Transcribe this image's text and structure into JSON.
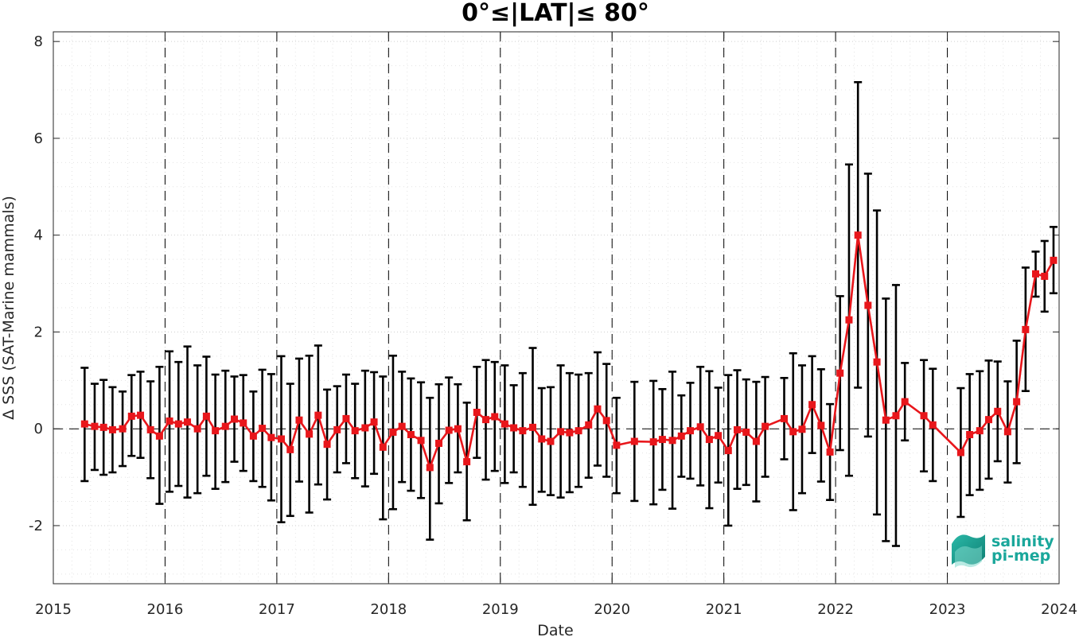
{
  "chart_data": {
    "type": "line",
    "title": "0°≤|LAT|≤ 80°",
    "xlabel": "Date",
    "ylabel": "Δ SSS (SAT-Marine mammals)",
    "xlim": [
      2015,
      2024
    ],
    "ylim": [
      -3.2,
      8.2
    ],
    "x_ticks": [
      2015,
      2016,
      2017,
      2018,
      2019,
      2020,
      2021,
      2022,
      2023,
      2024
    ],
    "y_ticks": [
      -2,
      0,
      2,
      4,
      6,
      8
    ],
    "grid": "dotted major and minor",
    "year_dividers": "dashed vertical lines at each year",
    "zero_line": "dashed horizontal line at 0",
    "series": [
      {
        "color": "#e8161b",
        "marker": "square",
        "error_bar_color": "#000000",
        "points": [
          {
            "x": 2015.28,
            "y": 0.1,
            "lo": -1.08,
            "hi": 1.26
          },
          {
            "x": 2015.37,
            "y": 0.05,
            "lo": -0.85,
            "hi": 0.93
          },
          {
            "x": 2015.45,
            "y": 0.03,
            "lo": -0.95,
            "hi": 1.01
          },
          {
            "x": 2015.53,
            "y": -0.02,
            "lo": -0.9,
            "hi": 0.86
          },
          {
            "x": 2015.62,
            "y": 0.0,
            "lo": -0.77,
            "hi": 0.77
          },
          {
            "x": 2015.7,
            "y": 0.26,
            "lo": -0.56,
            "hi": 1.11
          },
          {
            "x": 2015.78,
            "y": 0.28,
            "lo": -0.6,
            "hi": 1.18
          },
          {
            "x": 2015.87,
            "y": -0.02,
            "lo": -1.02,
            "hi": 0.98
          },
          {
            "x": 2015.95,
            "y": -0.15,
            "lo": -1.55,
            "hi": 1.28
          },
          {
            "x": 2016.04,
            "y": 0.16,
            "lo": -1.3,
            "hi": 1.6
          },
          {
            "x": 2016.12,
            "y": 0.1,
            "lo": -1.18,
            "hi": 1.38
          },
          {
            "x": 2016.2,
            "y": 0.14,
            "lo": -1.42,
            "hi": 1.7
          },
          {
            "x": 2016.29,
            "y": 0.0,
            "lo": -1.33,
            "hi": 1.31
          },
          {
            "x": 2016.37,
            "y": 0.26,
            "lo": -0.97,
            "hi": 1.49
          },
          {
            "x": 2016.45,
            "y": -0.04,
            "lo": -1.24,
            "hi": 1.12
          },
          {
            "x": 2016.54,
            "y": 0.05,
            "lo": -1.1,
            "hi": 1.2
          },
          {
            "x": 2016.62,
            "y": 0.2,
            "lo": -0.68,
            "hi": 1.08
          },
          {
            "x": 2016.7,
            "y": 0.12,
            "lo": -0.87,
            "hi": 1.11
          },
          {
            "x": 2016.79,
            "y": -0.15,
            "lo": -1.08,
            "hi": 0.77
          },
          {
            "x": 2016.87,
            "y": 0.01,
            "lo": -1.2,
            "hi": 1.22
          },
          {
            "x": 2016.95,
            "y": -0.18,
            "lo": -1.48,
            "hi": 1.13
          },
          {
            "x": 2017.04,
            "y": -0.21,
            "lo": -1.93,
            "hi": 1.5
          },
          {
            "x": 2017.12,
            "y": -0.43,
            "lo": -1.8,
            "hi": 0.93
          },
          {
            "x": 2017.2,
            "y": 0.18,
            "lo": -1.09,
            "hi": 1.45
          },
          {
            "x": 2017.29,
            "y": -0.11,
            "lo": -1.73,
            "hi": 1.51
          },
          {
            "x": 2017.37,
            "y": 0.28,
            "lo": -1.15,
            "hi": 1.72
          },
          {
            "x": 2017.45,
            "y": -0.32,
            "lo": -1.46,
            "hi": 0.81
          },
          {
            "x": 2017.54,
            "y": -0.02,
            "lo": -0.9,
            "hi": 0.88
          },
          {
            "x": 2017.62,
            "y": 0.21,
            "lo": -0.71,
            "hi": 1.12
          },
          {
            "x": 2017.7,
            "y": -0.04,
            "lo": -1.02,
            "hi": 0.93
          },
          {
            "x": 2017.79,
            "y": 0.02,
            "lo": -1.19,
            "hi": 1.2
          },
          {
            "x": 2017.87,
            "y": 0.14,
            "lo": -0.93,
            "hi": 1.17
          },
          {
            "x": 2017.95,
            "y": -0.38,
            "lo": -1.87,
            "hi": 1.08
          },
          {
            "x": 2018.04,
            "y": -0.07,
            "lo": -1.66,
            "hi": 1.51
          },
          {
            "x": 2018.12,
            "y": 0.05,
            "lo": -1.1,
            "hi": 1.18
          },
          {
            "x": 2018.2,
            "y": -0.12,
            "lo": -1.28,
            "hi": 1.04
          },
          {
            "x": 2018.29,
            "y": -0.24,
            "lo": -1.43,
            "hi": 0.96
          },
          {
            "x": 2018.37,
            "y": -0.8,
            "lo": -2.29,
            "hi": 0.64
          },
          {
            "x": 2018.45,
            "y": -0.3,
            "lo": -1.54,
            "hi": 0.92
          },
          {
            "x": 2018.54,
            "y": -0.03,
            "lo": -1.12,
            "hi": 1.06
          },
          {
            "x": 2018.62,
            "y": 0.0,
            "lo": -0.9,
            "hi": 0.92
          },
          {
            "x": 2018.7,
            "y": -0.68,
            "lo": -1.89,
            "hi": 0.54
          },
          {
            "x": 2018.79,
            "y": 0.34,
            "lo": -0.6,
            "hi": 1.28
          },
          {
            "x": 2018.87,
            "y": 0.19,
            "lo": -1.05,
            "hi": 1.42
          },
          {
            "x": 2018.95,
            "y": 0.25,
            "lo": -0.87,
            "hi": 1.38
          },
          {
            "x": 2019.04,
            "y": 0.1,
            "lo": -1.12,
            "hi": 1.31
          },
          {
            "x": 2019.12,
            "y": 0.02,
            "lo": -0.9,
            "hi": 0.9
          },
          {
            "x": 2019.2,
            "y": -0.04,
            "lo": -1.2,
            "hi": 1.15
          },
          {
            "x": 2019.29,
            "y": 0.03,
            "lo": -1.57,
            "hi": 1.67
          },
          {
            "x": 2019.37,
            "y": -0.21,
            "lo": -1.3,
            "hi": 0.84
          },
          {
            "x": 2019.45,
            "y": -0.26,
            "lo": -1.37,
            "hi": 0.86
          },
          {
            "x": 2019.54,
            "y": -0.06,
            "lo": -1.42,
            "hi": 1.31
          },
          {
            "x": 2019.62,
            "y": -0.08,
            "lo": -1.31,
            "hi": 1.15
          },
          {
            "x": 2019.7,
            "y": -0.04,
            "lo": -1.2,
            "hi": 1.12
          },
          {
            "x": 2019.79,
            "y": 0.08,
            "lo": -1.01,
            "hi": 1.15
          },
          {
            "x": 2019.87,
            "y": 0.41,
            "lo": -0.76,
            "hi": 1.58
          },
          {
            "x": 2019.95,
            "y": 0.17,
            "lo": -0.99,
            "hi": 1.34
          },
          {
            "x": 2020.04,
            "y": -0.34,
            "lo": -1.33,
            "hi": 0.64
          },
          {
            "x": 2020.2,
            "y": -0.26,
            "lo": -1.49,
            "hi": 0.97
          },
          {
            "x": 2020.37,
            "y": -0.27,
            "lo": -1.56,
            "hi": 0.99
          },
          {
            "x": 2020.45,
            "y": -0.22,
            "lo": -1.26,
            "hi": 0.82
          },
          {
            "x": 2020.54,
            "y": -0.24,
            "lo": -1.65,
            "hi": 1.18
          },
          {
            "x": 2020.62,
            "y": -0.15,
            "lo": -0.99,
            "hi": 0.69
          },
          {
            "x": 2020.7,
            "y": -0.04,
            "lo": -1.03,
            "hi": 0.95
          },
          {
            "x": 2020.79,
            "y": 0.04,
            "lo": -1.17,
            "hi": 1.28
          },
          {
            "x": 2020.87,
            "y": -0.22,
            "lo": -1.64,
            "hi": 1.19
          },
          {
            "x": 2020.95,
            "y": -0.14,
            "lo": -1.11,
            "hi": 0.85
          },
          {
            "x": 2021.04,
            "y": -0.45,
            "lo": -2.0,
            "hi": 1.11
          },
          {
            "x": 2021.12,
            "y": -0.02,
            "lo": -1.24,
            "hi": 1.21
          },
          {
            "x": 2021.2,
            "y": -0.07,
            "lo": -1.16,
            "hi": 1.02
          },
          {
            "x": 2021.29,
            "y": -0.26,
            "lo": -1.5,
            "hi": 0.97
          },
          {
            "x": 2021.37,
            "y": 0.05,
            "lo": -0.99,
            "hi": 1.07
          },
          {
            "x": 2021.54,
            "y": 0.21,
            "lo": -0.63,
            "hi": 1.05
          },
          {
            "x": 2021.62,
            "y": -0.06,
            "lo": -1.68,
            "hi": 1.56
          },
          {
            "x": 2021.7,
            "y": -0.01,
            "lo": -1.33,
            "hi": 1.31
          },
          {
            "x": 2021.79,
            "y": 0.5,
            "lo": -0.5,
            "hi": 1.5
          },
          {
            "x": 2021.87,
            "y": 0.07,
            "lo": -1.09,
            "hi": 1.23
          },
          {
            "x": 2021.95,
            "y": -0.48,
            "lo": -1.47,
            "hi": 0.51
          },
          {
            "x": 2022.04,
            "y": 1.15,
            "lo": -0.44,
            "hi": 2.74
          },
          {
            "x": 2022.12,
            "y": 2.25,
            "lo": -0.97,
            "hi": 5.46
          },
          {
            "x": 2022.2,
            "y": 4.0,
            "lo": 0.85,
            "hi": 7.16
          },
          {
            "x": 2022.29,
            "y": 2.55,
            "lo": -0.16,
            "hi": 5.27
          },
          {
            "x": 2022.37,
            "y": 1.38,
            "lo": -1.77,
            "hi": 4.51
          },
          {
            "x": 2022.45,
            "y": 0.18,
            "lo": -2.32,
            "hi": 2.69
          },
          {
            "x": 2022.54,
            "y": 0.27,
            "lo": -2.42,
            "hi": 2.97
          },
          {
            "x": 2022.62,
            "y": 0.56,
            "lo": -0.24,
            "hi": 1.36
          },
          {
            "x": 2022.79,
            "y": 0.27,
            "lo": -0.88,
            "hi": 1.42
          },
          {
            "x": 2022.87,
            "y": 0.08,
            "lo": -1.08,
            "hi": 1.24
          },
          {
            "x": 2023.12,
            "y": -0.49,
            "lo": -1.82,
            "hi": 0.84
          },
          {
            "x": 2023.2,
            "y": -0.12,
            "lo": -1.37,
            "hi": 1.13
          },
          {
            "x": 2023.29,
            "y": -0.04,
            "lo": -1.26,
            "hi": 1.19
          },
          {
            "x": 2023.37,
            "y": 0.19,
            "lo": -1.03,
            "hi": 1.41
          },
          {
            "x": 2023.45,
            "y": 0.36,
            "lo": -0.67,
            "hi": 1.39
          },
          {
            "x": 2023.54,
            "y": -0.06,
            "lo": -1.11,
            "hi": 0.98
          },
          {
            "x": 2023.62,
            "y": 0.56,
            "lo": -0.71,
            "hi": 1.82
          },
          {
            "x": 2023.7,
            "y": 2.05,
            "lo": 0.78,
            "hi": 3.33
          },
          {
            "x": 2023.79,
            "y": 3.2,
            "lo": 2.73,
            "hi": 3.66
          },
          {
            "x": 2023.87,
            "y": 3.15,
            "lo": 2.42,
            "hi": 3.88
          },
          {
            "x": 2023.95,
            "y": 3.48,
            "lo": 2.8,
            "hi": 4.17
          }
        ]
      }
    ],
    "colors": {
      "line": "#e8161b",
      "marker_edge": "#e8161b",
      "error_bars": "#000000",
      "logo": "#1aa79b"
    }
  },
  "logo": {
    "line1": "salinity",
    "line2": "pi-mep"
  }
}
